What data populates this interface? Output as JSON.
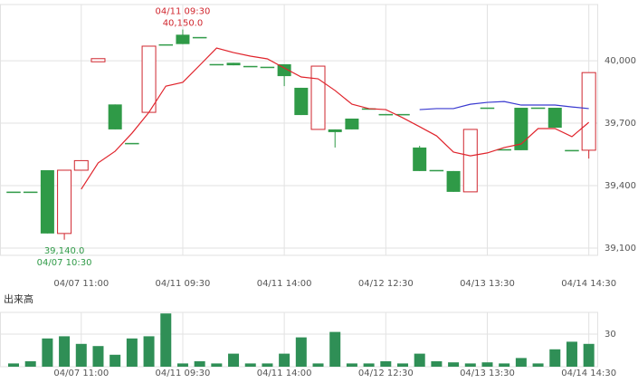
{
  "chart_data": {
    "type": "candlestick",
    "categories": [
      null,
      null,
      null,
      null,
      "04/07 11:00",
      null,
      null,
      null,
      null,
      null,
      "04/11 09:30",
      null,
      null,
      null,
      null,
      null,
      "04/11 14:00",
      null,
      null,
      null,
      null,
      null,
      "04/12 12:30",
      null,
      null,
      null,
      null,
      null,
      "04/13 13:30",
      null,
      null,
      null,
      null,
      null,
      "04/14 14:30"
    ],
    "open": [
      39370,
      39370,
      39474,
      39170,
      39474,
      39995,
      39790,
      39604,
      39752,
      40078,
      40125,
      40113,
      39983,
      39990,
      39974,
      39970,
      39983,
      39870,
      39670,
      39670,
      39722,
      39770,
      39743,
      39743,
      39583,
      39474,
      39470,
      39370,
      39774,
      39574,
      39774,
      39774,
      39774,
      39570,
      39570
    ],
    "high": [
      39370,
      39370,
      39474,
      39474,
      39520,
      40010,
      39790,
      39604,
      40070,
      40078,
      40150,
      40113,
      39983,
      39990,
      39974,
      39970,
      39983,
      39870,
      39974,
      39670,
      39722,
      39770,
      39743,
      39743,
      39591,
      39474,
      39470,
      39670,
      39774,
      39574,
      39774,
      39774,
      39774,
      39570,
      39943
    ],
    "low": [
      39370,
      39370,
      39170,
      39140,
      39474,
      39995,
      39670,
      39604,
      39752,
      40078,
      40080,
      40113,
      39983,
      39978,
      39974,
      39970,
      39878,
      39739,
      39670,
      39583,
      39670,
      39770,
      39743,
      39743,
      39470,
      39474,
      39370,
      39370,
      39774,
      39574,
      39570,
      39774,
      39678,
      39570,
      39530
    ],
    "close": [
      39370,
      39370,
      39170,
      39474,
      39520,
      40010,
      39670,
      39604,
      40070,
      40078,
      40080,
      40113,
      39983,
      39978,
      39974,
      39970,
      39926,
      39739,
      39974,
      39657,
      39670,
      39770,
      39743,
      39743,
      39470,
      39474,
      39370,
      39670,
      39774,
      39574,
      39570,
      39774,
      39678,
      39570,
      39943
    ],
    "up_color": "#d0262e",
    "down_color": "#2f9a47",
    "ma_lines": [
      {
        "color": "#e0242c",
        "values": [
          null,
          null,
          null,
          null,
          39383,
          39509,
          39565,
          39652,
          39752,
          39878,
          39896,
          39978,
          40061,
          40039,
          40022,
          40009,
          39965,
          39922,
          39913,
          39857,
          39791,
          39770,
          39765,
          39726,
          39683,
          39639,
          39561,
          39543,
          39557,
          39583,
          39600,
          39674,
          39674,
          39635,
          39704
        ]
      },
      {
        "color": "#3a3ad0",
        "values": [
          null,
          null,
          null,
          null,
          null,
          null,
          null,
          null,
          null,
          null,
          null,
          null,
          null,
          null,
          null,
          null,
          null,
          null,
          null,
          null,
          null,
          null,
          null,
          null,
          39765,
          39770,
          39770,
          39791,
          39800,
          39804,
          39787,
          39787,
          39787,
          39778,
          39770
        ]
      }
    ],
    "ylim": [
      39065,
      40270
    ],
    "yticks": [
      {
        "value": 39100,
        "label": "39,100"
      },
      {
        "value": 39400,
        "label": "39,400"
      },
      {
        "value": 39700,
        "label": "39,700"
      },
      {
        "value": 40000,
        "label": "40,000"
      }
    ],
    "annotations": {
      "max_time": "04/11 09:30",
      "max_label": "40,150.0",
      "min_label": "39,140.0",
      "min_time": "04/07 10:30"
    },
    "volume": {
      "title": "出来高",
      "color": "#2f8f56",
      "values": [
        3,
        5,
        26,
        28,
        21,
        19,
        11,
        26,
        28,
        49,
        3,
        5,
        3,
        12,
        3,
        3,
        12,
        27,
        3,
        32,
        3,
        3,
        5,
        3,
        12,
        5,
        4,
        3,
        4,
        3,
        8,
        3,
        16,
        23,
        21
      ],
      "ylim": [
        0,
        50
      ],
      "yticks": [
        30
      ]
    }
  }
}
